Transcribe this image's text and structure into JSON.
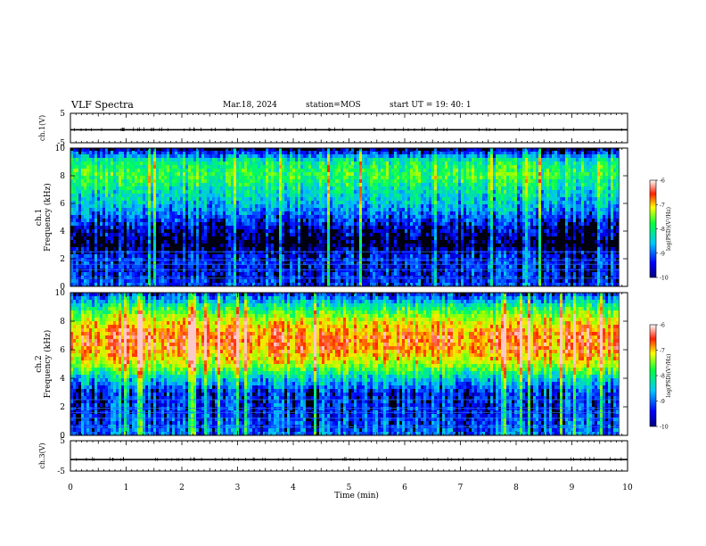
{
  "header": {
    "title": "VLF Spectra",
    "date": "Mar.18, 2024",
    "station": "station=MOS",
    "start": "start  UT  =    19: 40: 1"
  },
  "colors": {
    "frame": "#000000",
    "spectrum_background": "#000010"
  },
  "chart_data": [
    {
      "type": "line",
      "name": "ch1-waveform",
      "ylabel": "ch.1(V)",
      "ylim": [
        -5,
        5
      ],
      "yticks": [
        "5",
        "-5"
      ],
      "xlim": [
        0,
        10
      ],
      "x": [
        0,
        10
      ],
      "values": [
        -0.6,
        -0.6
      ]
    },
    {
      "type": "heatmap",
      "name": "ch1-spectrogram",
      "ylabel": "ch.1\nFrequency (kHz)",
      "ylabel_lines": [
        "ch.1",
        "Frequency (kHz)"
      ],
      "ylim": [
        0,
        10
      ],
      "yticks": [
        "0",
        "2",
        "4",
        "6",
        "8",
        "10"
      ],
      "xlim": [
        0,
        9.85
      ],
      "colorbar": {
        "label": "log(PSD)(V²/Hz)",
        "range": [
          -10,
          -6
        ],
        "ticks": [
          "-6",
          "-7",
          "-8",
          "-9",
          "-10"
        ]
      },
      "profile_khz": [
        0,
        1,
        2,
        3,
        4,
        5,
        6,
        7,
        8,
        9,
        10
      ],
      "profile_logpsd": [
        -9.3,
        -9.5,
        -9.4,
        -10,
        -9.7,
        -9.2,
        -8.7,
        -8.4,
        -7.9,
        -8.3,
        -10
      ]
    },
    {
      "type": "heatmap",
      "name": "ch2-spectrogram",
      "ylabel": "ch.2\nFrequency (kHz)",
      "ylabel_lines": [
        "ch.2",
        "Frequency (kHz)"
      ],
      "ylim": [
        0,
        10
      ],
      "yticks": [
        "0",
        "2",
        "4",
        "6",
        "8",
        "10"
      ],
      "xlim": [
        0,
        9.85
      ],
      "colorbar": {
        "label": "log(PSD)(V²/Hz)",
        "range": [
          -10,
          -6
        ],
        "ticks": [
          "-6",
          "-7",
          "-8",
          "-9",
          "-10"
        ]
      },
      "profile_khz": [
        0,
        1,
        2,
        3,
        4,
        5,
        6,
        7,
        8,
        9,
        10
      ],
      "profile_logpsd": [
        -9.1,
        -9.3,
        -9.4,
        -9.4,
        -8.6,
        -7.4,
        -6.7,
        -6.6,
        -7.2,
        -8.2,
        -9.5
      ]
    },
    {
      "type": "line",
      "name": "ch3-waveform",
      "ylabel": "ch.3(V)",
      "ylim": [
        -5,
        5
      ],
      "yticks": [
        "5",
        "-5"
      ],
      "xlim": [
        0,
        10
      ],
      "x": [
        0,
        10
      ],
      "values": [
        -1.2,
        -1.2
      ]
    }
  ],
  "xaxis": {
    "label": "Time (min)",
    "ticks": [
      "0",
      "1",
      "2",
      "3",
      "4",
      "5",
      "6",
      "7",
      "8",
      "9",
      "10"
    ],
    "range": [
      0,
      10
    ]
  }
}
